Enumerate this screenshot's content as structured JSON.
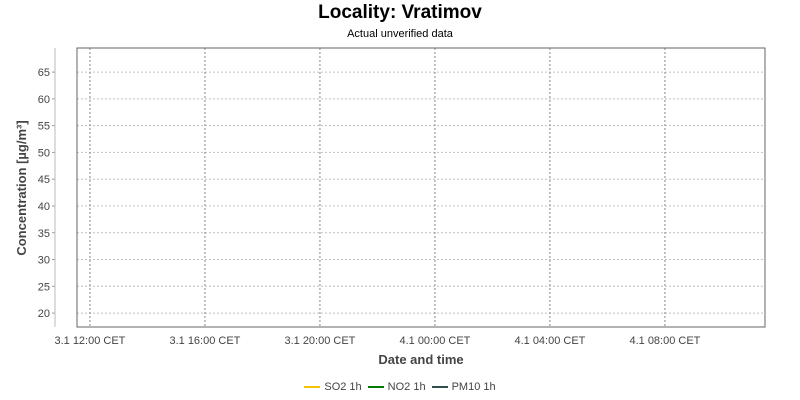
{
  "chart_data": {
    "type": "line",
    "title": "Locality: Vratimov",
    "subtitle": "Actual unverified data",
    "xlabel": "Date and time",
    "ylabel": "Concentration [µg/m³]",
    "ylim": [
      17.4,
      69.5
    ],
    "yticks": [
      20,
      25,
      30,
      35,
      40,
      45,
      50,
      55,
      60,
      65
    ],
    "xlim_hours": [
      -0.45,
      23.48
    ],
    "xticks": [
      {
        "label": "3.1 12:00 CET",
        "hour": 0
      },
      {
        "label": "3.1 16:00 CET",
        "hour": 4
      },
      {
        "label": "3.1 20:00 CET",
        "hour": 8
      },
      {
        "label": "4.1 00:00 CET",
        "hour": 12
      },
      {
        "label": "4.1 04:00 CET",
        "hour": 16
      },
      {
        "label": "4.1 08:00 CET",
        "hour": 20
      }
    ],
    "grid": true,
    "legend_position": "bottom",
    "series": [
      {
        "name": "SO2 1h",
        "color": "#f2c500",
        "values": []
      },
      {
        "name": "NO2 1h",
        "color": "#007a00",
        "values": []
      },
      {
        "name": "PM10 1h",
        "color": "#2f4f4f",
        "values": []
      }
    ]
  }
}
